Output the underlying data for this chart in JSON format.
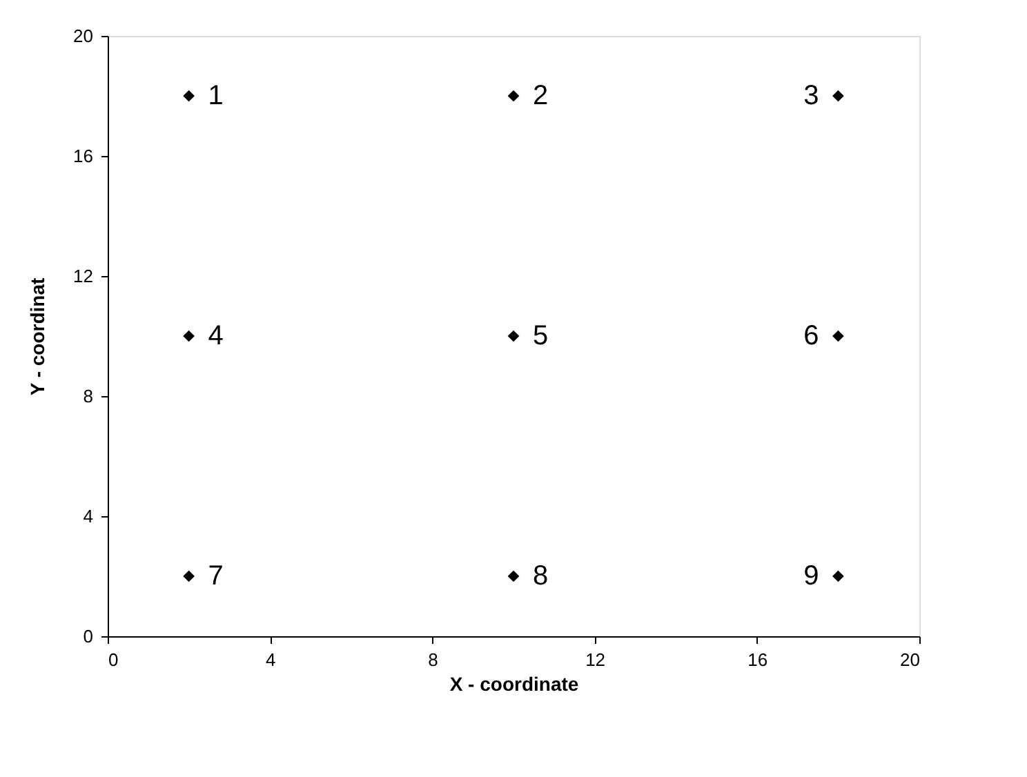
{
  "chart_data": {
    "type": "scatter",
    "xlabel": "X  - coordinate",
    "ylabel": "Y - coordinat",
    "x": [
      2,
      10,
      18,
      2,
      10,
      18,
      2,
      10,
      18
    ],
    "series": [
      {
        "color": "#000000",
        "values": [
          18,
          18,
          18,
          10,
          10,
          10,
          2,
          2,
          2
        ]
      }
    ],
    "xlim": [
      0,
      20
    ],
    "ylim": [
      0,
      20
    ],
    "xticks": [
      0,
      4,
      8,
      12,
      16,
      20
    ],
    "yticks": [
      0,
      4,
      8,
      12,
      16,
      20
    ],
    "grid": false,
    "marker": "diamond",
    "annotations": [
      {
        "text": "1",
        "x": 2,
        "y": 18
      },
      {
        "text": "2",
        "x": 10,
        "y": 18
      },
      {
        "text": "3",
        "x": 18,
        "y": 18
      },
      {
        "text": "4",
        "x": 2,
        "y": 10
      },
      {
        "text": "5",
        "x": 10,
        "y": 10
      },
      {
        "text": "6",
        "x": 18,
        "y": 10
      },
      {
        "text": "7",
        "x": 2,
        "y": 2
      },
      {
        "text": "8",
        "x": 10,
        "y": 2
      },
      {
        "text": "9",
        "x": 18,
        "y": 2
      }
    ]
  }
}
